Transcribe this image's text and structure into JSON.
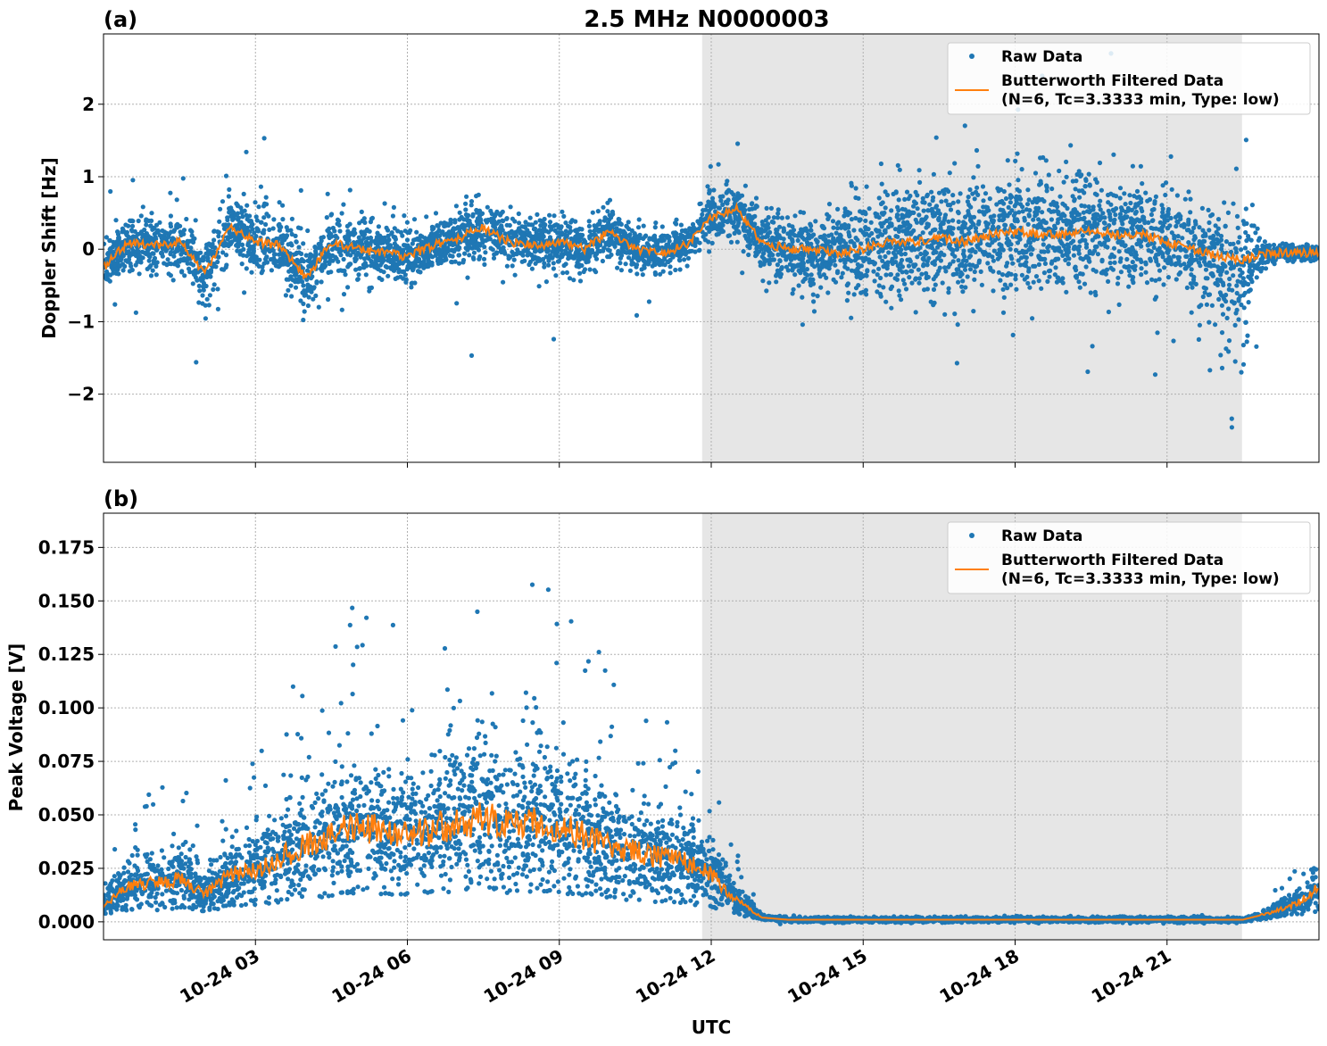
{
  "chart_data": [
    {
      "type": "scatter",
      "panel_label": "(a)",
      "title": "2.5 MHz N0000003",
      "xlabel": "",
      "ylabel": "Doppler Shift [Hz]",
      "xlim_hours": [
        0,
        24
      ],
      "ylim": [
        -2.94,
        2.97
      ],
      "yticks": [
        -2,
        -1,
        0,
        1,
        2
      ],
      "ytick_labels": [
        "−2",
        "−1",
        "0",
        "1",
        "2"
      ],
      "grid": true,
      "shaded_region_hours": [
        11.82,
        22.48
      ],
      "legend": {
        "placement": "top-right",
        "entries": [
          "Raw Data",
          "Butterworth Filtered Data",
          "(N=6, Tc=3.3333 min, Type: low)"
        ]
      },
      "x_hours": [
        0,
        0.5,
        1,
        1.5,
        2,
        2.5,
        3,
        3.5,
        4,
        4.5,
        5,
        5.5,
        6,
        6.5,
        7,
        7.5,
        8,
        8.5,
        9,
        9.5,
        10,
        10.5,
        11,
        11.5,
        12,
        12.5,
        13,
        13.5,
        14,
        14.5,
        15,
        15.5,
        16,
        16.5,
        17,
        17.5,
        18,
        18.5,
        19,
        19.5,
        20,
        20.5,
        21,
        21.5,
        22,
        22.5,
        23,
        23.5,
        24
      ],
      "series": [
        {
          "name": "Butterworth Filtered Data",
          "color": "#ff7f0e",
          "values": [
            -0.25,
            0.1,
            0.05,
            0.1,
            -0.35,
            0.3,
            0.1,
            0.05,
            -0.4,
            0.1,
            0.0,
            -0.05,
            -0.1,
            0.05,
            0.15,
            0.3,
            0.1,
            0.05,
            0.1,
            0.0,
            0.25,
            0.0,
            -0.05,
            0.05,
            0.45,
            0.55,
            0.1,
            0.0,
            0.0,
            -0.05,
            0.0,
            0.1,
            0.1,
            0.15,
            0.1,
            0.2,
            0.25,
            0.2,
            0.2,
            0.25,
            0.2,
            0.2,
            0.1,
            0.0,
            -0.1,
            -0.15,
            -0.05,
            -0.05,
            -0.05
          ]
        },
        {
          "name": "Raw Data",
          "color": "#1f77b4",
          "spread": [
            0.45,
            0.45,
            0.4,
            0.45,
            0.5,
            0.55,
            0.55,
            0.55,
            0.65,
            0.5,
            0.45,
            0.45,
            0.45,
            0.4,
            0.45,
            0.5,
            0.45,
            0.45,
            0.45,
            0.4,
            0.45,
            0.4,
            0.35,
            0.3,
            0.45,
            0.45,
            0.5,
            0.55,
            0.65,
            0.7,
            0.9,
            0.95,
            1.0,
            1.0,
            1.0,
            1.0,
            1.0,
            0.95,
            0.95,
            0.95,
            0.95,
            0.9,
            0.85,
            0.7,
            0.9,
            0.9,
            0.15,
            0.12,
            0.12
          ]
        }
      ]
    },
    {
      "type": "scatter",
      "panel_label": "(b)",
      "xlabel": "UTC",
      "ylabel": "Peak Voltage [V]",
      "xlim_hours": [
        0,
        24
      ],
      "ylim": [
        -0.0084,
        0.191
      ],
      "yticks": [
        0,
        0.025,
        0.05,
        0.075,
        0.1,
        0.125,
        0.15,
        0.175
      ],
      "ytick_labels": [
        "0.000",
        "0.025",
        "0.050",
        "0.075",
        "0.100",
        "0.125",
        "0.150",
        "0.175"
      ],
      "xticks_hours": [
        3,
        6,
        9,
        12,
        15,
        18,
        21
      ],
      "xtick_labels": [
        "10-24 03",
        "10-24 06",
        "10-24 09",
        "10-24 12",
        "10-24 15",
        "10-24 18",
        "10-24 21"
      ],
      "grid": true,
      "shaded_region_hours": [
        11.82,
        22.48
      ],
      "legend": {
        "placement": "top-right",
        "entries": [
          "Raw Data",
          "Butterworth Filtered Data",
          "(N=6, Tc=3.3333 min, Type: low)"
        ]
      },
      "x_hours": [
        0,
        0.5,
        1,
        1.5,
        2,
        2.5,
        3,
        3.5,
        4,
        4.5,
        5,
        5.5,
        6,
        6.5,
        7,
        7.5,
        8,
        8.5,
        9,
        9.5,
        10,
        10.5,
        11,
        11.5,
        12,
        12.5,
        13,
        13.5,
        14,
        14.5,
        15,
        15.5,
        16,
        16.5,
        17,
        17.5,
        18,
        18.5,
        19,
        19.5,
        20,
        20.5,
        21,
        21.5,
        22,
        22.5,
        23,
        23.5,
        24
      ],
      "series": [
        {
          "name": "Butterworth Filtered Data",
          "color": "#ff7f0e",
          "values": [
            0.008,
            0.017,
            0.018,
            0.02,
            0.013,
            0.022,
            0.024,
            0.03,
            0.036,
            0.04,
            0.045,
            0.042,
            0.04,
            0.043,
            0.047,
            0.048,
            0.045,
            0.047,
            0.045,
            0.04,
            0.035,
            0.033,
            0.03,
            0.028,
            0.022,
            0.01,
            0.002,
            0.001,
            0.001,
            0.001,
            0.001,
            0.001,
            0.001,
            0.001,
            0.001,
            0.001,
            0.001,
            0.001,
            0.001,
            0.001,
            0.001,
            0.001,
            0.001,
            0.001,
            0.001,
            0.001,
            0.004,
            0.008,
            0.016
          ]
        },
        {
          "name": "Raw Data",
          "color": "#1f77b4"
        }
      ]
    }
  ]
}
